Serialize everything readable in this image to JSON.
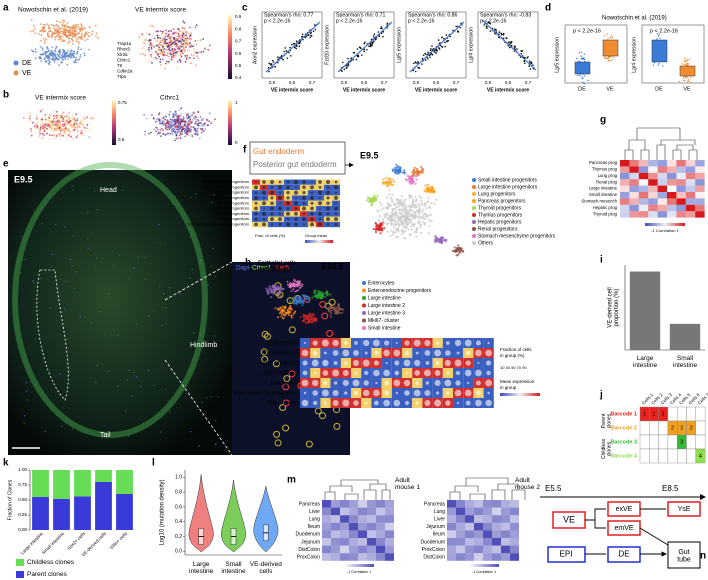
{
  "panels": {
    "a": {
      "label": "a",
      "title": "Nowotschin et al. (2019)",
      "score_title": "VE intermix score",
      "legend": [
        "DE",
        "VE"
      ],
      "legend_colors": [
        "#5b86c9",
        "#e8894a"
      ],
      "genes": [
        "Trap1a",
        "Rhox5",
        "Xlr3a",
        "Cthrc1",
        "Ttr",
        "Cdkn2a",
        "Ttpa"
      ],
      "colorbar": [
        "0.9",
        "0.8",
        "0.7",
        "0.6",
        "0.5",
        "0.4"
      ]
    },
    "b": {
      "label": "b",
      "titles": [
        "VE intermix score",
        "Cthrc1"
      ],
      "colorbar1": [
        "0.75",
        "0.6"
      ],
      "colorbar2": [
        "1",
        "0"
      ]
    },
    "c": {
      "label": "c",
      "xticks": [
        "0.5",
        "0.6",
        "0.7"
      ],
      "plots": [
        {
          "stat": "Spearman's rho: 0.77",
          "p": "p < 2.2e-16",
          "ylabel": "Axin2 expression",
          "xlabel": "VE intermix score"
        },
        {
          "stat": "Spearman's rho: 0.71",
          "p": "p < 2.2e-16",
          "ylabel": "Fzd10 expression",
          "xlabel": "VE intermix score"
        },
        {
          "stat": "Spearman's rho: 0.86",
          "p": "p < 2.2e-16",
          "ylabel": "Lgr5 expression",
          "xlabel": "VE intermix score"
        },
        {
          "stat": "Spearman's rho: -0.83",
          "p": "p < 2.2e-16",
          "ylabel": "Lgr4 expression",
          "xlabel": "VE intermix score"
        }
      ]
    },
    "d": {
      "label": "d",
      "title": "Nowotschin et al. (2019)",
      "categories": [
        "DE",
        "VE"
      ],
      "plots": [
        {
          "p": "p < 2.2e-16",
          "ylabel": "Lgr5 expression"
        },
        {
          "p": "p < 2.2e-16",
          "ylabel": "Lgr4 expression"
        }
      ]
    },
    "e": {
      "label": "e",
      "stage": "E9.5",
      "head": "Head",
      "hindlimb": "Hindlimb",
      "tail": "Tail",
      "channels": [
        "Dapi",
        "Cthrc1",
        "Lgr5"
      ],
      "channel_colors": [
        "#5a78ff",
        "#8cff3a",
        "#ff4040"
      ]
    },
    "f": {
      "label": "f",
      "box": [
        "Gut endoderm",
        "Posterior gut endoderm"
      ],
      "stage": "E9.5",
      "rows": [
        "Small intestine progenitors",
        "Large intestine progenitors",
        "Lung progenitors",
        "Pancreas progenitors",
        "Thyroid progenitors",
        "Thymus progenitors",
        "Hepatic progenitors",
        "Renal progenitors",
        "Stomach mesenchyme progenitors"
      ],
      "size_legend": "Frac. of cells (%)",
      "color_legend": "Group mean",
      "legend": [
        "Small intestine progenitors",
        "Large intestine progenitors",
        "Lung progenitors",
        "Pancreas progenitors",
        "Thyroid progenitors",
        "Thymus progenitors",
        "Hepatic progenitors",
        "Renal progenitors",
        "Stomach mesenchyme progenitors",
        "Others"
      ],
      "colors": [
        "#3a7bd5",
        "#e07b39",
        "#f2b134",
        "#ff9f1c",
        "#a6d854",
        "#d62728",
        "#9467bd",
        "#8c564b",
        "#e377c2",
        "#cccccc"
      ]
    },
    "g": {
      "label": "g",
      "rows": [
        "Pancreas prog",
        "Thymus prog",
        "Lung prog",
        "Renal prog",
        "Large intestine",
        "Small intestine",
        "Stomach mesench",
        "Hepatic prog",
        "Thyroid prog"
      ],
      "colorbar": "-1 Correlation 1"
    },
    "h": {
      "label": "h",
      "title": "Epithelial cells",
      "subtitle": "(Mki67high)",
      "stage": "E14.5",
      "legend": [
        "Enterocytes",
        "Enteroendocrine progenitors",
        "Large intestine",
        "Large intestine 2",
        "Large intestine 3",
        "Mki67- cluster",
        "Small intestine"
      ],
      "colors": [
        "#3a7bd5",
        "#ff8c1a",
        "#2ca02c",
        "#d62728",
        "#9467bd",
        "#8c564b",
        "#e377c2"
      ],
      "rows": [
        "Small intestine",
        "Large intestine",
        "Large intestine 2",
        "Large intestine 3",
        "Enterocytes",
        "Enteroendocrine progenitors",
        "Mki67- cluster"
      ],
      "size_legend": [
        "Fraction of cells",
        "in group (%)"
      ],
      "sizes": "10 30 50 70 90",
      "color_legend": [
        "Mean expression",
        "in group"
      ]
    },
    "i": {
      "label": "i"
    },
    "j": {
      "label": "j",
      "columns": [
        "Cells 1",
        "Cells 2",
        "Cells 3",
        "Cells 4",
        "Cells 5",
        "Cells 6",
        "Cells 7"
      ],
      "groups": [
        "Parent clones",
        "Childless clones"
      ],
      "colors": [
        "#e8231d",
        "#f0a020",
        "#35b835",
        "#90dd50"
      ],
      "rows": [
        {
          "name": "Barcode 1",
          "cells": [
            1,
            1,
            1,
            null,
            null,
            null,
            null
          ]
        },
        {
          "name": "Barcode 2",
          "cells": [
            null,
            null,
            null,
            2,
            2,
            2,
            null
          ]
        },
        {
          "name": "Barcode 3",
          "cells": [
            null,
            null,
            null,
            null,
            3,
            null,
            null
          ]
        },
        {
          "name": "Barcode 4",
          "cells": [
            null,
            null,
            null,
            null,
            null,
            null,
            4
          ]
        }
      ]
    },
    "k": {
      "label": "k"
    },
    "l": {
      "label": "l"
    },
    "m": {
      "label": "m",
      "titles": [
        "Adult mouse 1",
        "Adult mouse 2"
      ],
      "rows1": [
        "Pancreas",
        "Liver",
        "Lung",
        "Ileum",
        "Duodenum",
        "Jejunum",
        "DistColon",
        "ProxColon"
      ],
      "rows2": [
        "Pancreas",
        "Lung",
        "Liver",
        "Jejunum",
        "Ileum",
        "Duodenum",
        "ProxColon",
        "DistColon"
      ],
      "colorbar": "-1 Correlation 1"
    },
    "n": {
      "label": "n",
      "stages": [
        "E5.5",
        "E8.5"
      ],
      "nodes": [
        "VE",
        "exVE",
        "emVE",
        "YsE",
        "EPI",
        "DE",
        "Gut tube"
      ]
    }
  },
  "chart_data": [
    {
      "type": "stacked-bar",
      "y_label": "Fraction of Clones",
      "categories": [
        "Large intestine",
        "Small intestine",
        "Sox2+ cells",
        "VE-derived cells",
        "Villin+ cells"
      ],
      "series": [
        {
          "name": "Childless clones",
          "color": "#66dd55",
          "values": [
            0.45,
            0.48,
            0.44,
            0.2,
            0.4
          ]
        },
        {
          "name": "Parent clones",
          "color": "#3a3ad8",
          "values": [
            0.55,
            0.52,
            0.56,
            0.8,
            0.6
          ]
        }
      ],
      "ylim": [
        0,
        1
      ],
      "yticks": [
        {
          "value": 0,
          "label": "0.00"
        },
        {
          "value": 0.25,
          "label": "0.25"
        },
        {
          "value": 0.5,
          "label": "0.50"
        },
        {
          "value": 0.75,
          "label": "0.75"
        },
        {
          "value": 1,
          "label": "1.00"
        }
      ]
    },
    {
      "type": "bar",
      "y_label": "VE-derived cell proportion (%)",
      "categories": [
        "Large intestine",
        "Small intestine"
      ],
      "values": [
        2.4,
        0.8
      ],
      "color": "#777777",
      "ylim": [
        0,
        2.6
      ]
    },
    {
      "type": "violin",
      "y_label": "Log10 (mutation density)",
      "categories": [
        "Large intestine",
        "Small intestine",
        "VE-derived cells"
      ],
      "colors": [
        "#f08080",
        "#7ccd5c",
        "#6fa8f5"
      ],
      "medians": [
        0.2,
        0.2,
        0.25
      ],
      "ylim": [
        -0.05,
        1.1
      ],
      "yticks": [
        {
          "value": 0,
          "label": "0.0"
        },
        0.2,
        0.4,
        0.6,
        0.8,
        {
          "value": 1,
          "label": "1.0"
        }
      ]
    }
  ]
}
